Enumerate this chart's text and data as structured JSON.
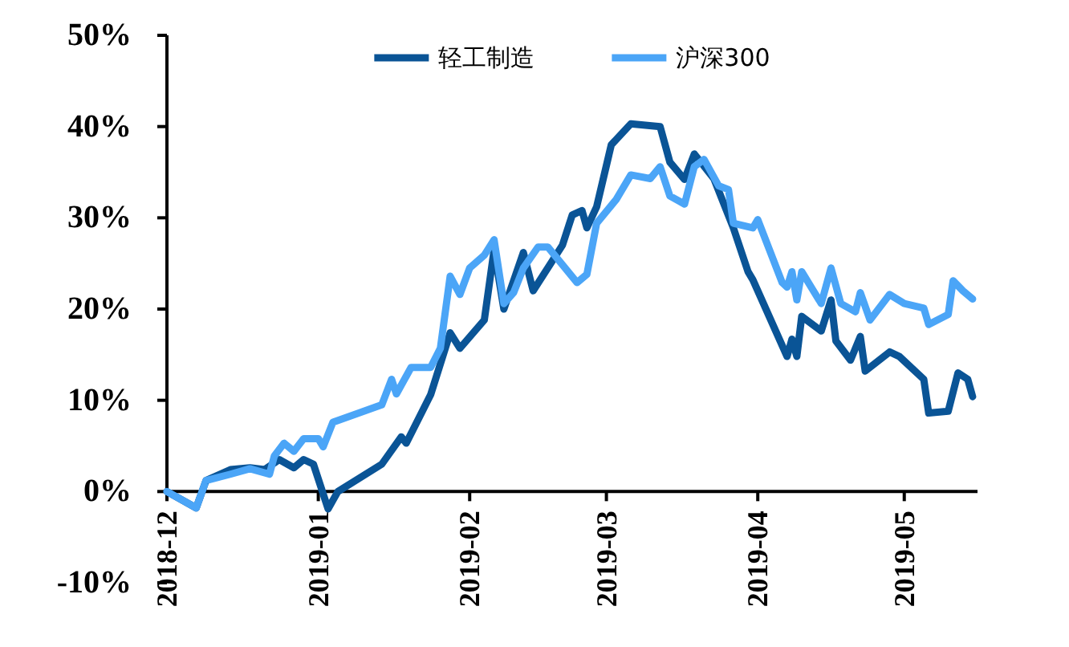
{
  "chart_data": {
    "type": "line",
    "xlim": [
      "2018-12-01",
      "2019-05-16"
    ],
    "xticks": [
      "2018-12",
      "2019-01",
      "2019-02",
      "2019-03",
      "2019-04",
      "2019-05"
    ],
    "ylim": [
      -10,
      50
    ],
    "yticks": [
      {
        "value": -10,
        "label": "-10%"
      },
      {
        "value": 0,
        "label": "0%"
      },
      {
        "value": 10,
        "label": "10%"
      },
      {
        "value": 20,
        "label": "20%"
      },
      {
        "value": 30,
        "label": "30%"
      },
      {
        "value": 40,
        "label": "40%"
      },
      {
        "value": 50,
        "label": "50%"
      }
    ],
    "legend": "top",
    "series": [
      {
        "name": "轻工制造",
        "color": "#0a5496",
        "x": [
          "2018-12-01",
          "2018-12-07",
          "2018-12-09",
          "2018-12-14",
          "2018-12-18",
          "2018-12-21",
          "2018-12-24",
          "2018-12-27",
          "2018-12-29",
          "2018-12-31",
          "2019-01-03",
          "2019-01-05",
          "2019-01-14",
          "2019-01-18",
          "2019-01-19",
          "2019-01-24",
          "2019-01-28",
          "2019-01-30",
          "2019-02-04",
          "2019-02-06",
          "2019-02-08",
          "2019-02-12",
          "2019-02-14",
          "2019-02-20",
          "2019-02-22",
          "2019-02-24",
          "2019-02-25",
          "2019-02-27",
          "2019-03-02",
          "2019-03-06",
          "2019-03-12",
          "2019-03-14",
          "2019-03-17",
          "2019-03-19",
          "2019-03-23",
          "2019-03-27",
          "2019-03-30",
          "2019-03-31",
          "2019-04-07",
          "2019-04-08",
          "2019-04-09",
          "2019-04-10",
          "2019-04-14",
          "2019-04-16",
          "2019-04-17",
          "2019-04-20",
          "2019-04-22",
          "2019-04-23",
          "2019-04-28",
          "2019-04-30",
          "2019-05-05",
          "2019-05-06",
          "2019-05-10",
          "2019-05-12",
          "2019-05-14",
          "2019-05-15"
        ],
        "values": [
          0,
          -1.8,
          1.2,
          2.4,
          2.6,
          2.4,
          3.5,
          2.6,
          3.5,
          3.0,
          -1.9,
          0,
          3,
          6,
          5.3,
          10.6,
          17.4,
          15.7,
          18.8,
          26.5,
          20,
          26.2,
          22,
          27,
          30.3,
          30.8,
          28.9,
          31.2,
          38,
          40.3,
          40,
          36.1,
          34.2,
          37,
          34.3,
          28.9,
          24.1,
          23.2,
          14.8,
          16.7,
          14.8,
          19.2,
          17.6,
          21,
          16.5,
          14.4,
          17,
          13.2,
          15.3,
          14.8,
          12.3,
          8.6,
          8.8,
          13,
          12.3,
          10.4
        ]
      },
      {
        "name": "沪深300",
        "color": "#4ba5f7",
        "x": [
          "2018-12-01",
          "2018-12-07",
          "2018-12-09",
          "2018-12-14",
          "2018-12-18",
          "2018-12-22",
          "2018-12-23",
          "2018-12-25",
          "2018-12-27",
          "2018-12-29",
          "2019-01-01",
          "2019-01-02",
          "2019-01-04",
          "2019-01-14",
          "2019-01-16",
          "2019-01-17",
          "2019-01-20",
          "2019-01-24",
          "2019-01-26",
          "2019-01-28",
          "2019-01-30",
          "2019-02-01",
          "2019-02-04",
          "2019-02-06",
          "2019-02-08",
          "2019-02-10",
          "2019-02-12",
          "2019-02-15",
          "2019-02-17",
          "2019-02-23",
          "2019-02-25",
          "2019-02-27",
          "2019-03-03",
          "2019-03-06",
          "2019-03-10",
          "2019-03-12",
          "2019-03-14",
          "2019-03-17",
          "2019-03-19",
          "2019-03-21",
          "2019-03-24",
          "2019-03-26",
          "2019-03-27",
          "2019-03-31",
          "2019-04-01",
          "2019-04-06",
          "2019-04-07",
          "2019-04-08",
          "2019-04-09",
          "2019-04-10",
          "2019-04-14",
          "2019-04-16",
          "2019-04-18",
          "2019-04-21",
          "2019-04-22",
          "2019-04-24",
          "2019-04-28",
          "2019-05-01",
          "2019-05-05",
          "2019-05-06",
          "2019-05-10",
          "2019-05-11",
          "2019-05-13",
          "2019-05-15"
        ],
        "values": [
          0,
          -1.8,
          1.2,
          1.9,
          2.5,
          1.9,
          3.9,
          5.3,
          4.4,
          5.8,
          5.8,
          4.9,
          7.6,
          9.5,
          12.3,
          10.7,
          13.6,
          13.6,
          15.7,
          23.6,
          21.6,
          24.5,
          25.9,
          27.6,
          20.6,
          21.8,
          24.5,
          26.8,
          26.8,
          22.9,
          23.8,
          29.4,
          32,
          34.7,
          34.3,
          35.6,
          32.4,
          31.5,
          35.6,
          36.4,
          33.5,
          33.1,
          29.4,
          28.9,
          29.8,
          22.9,
          22.4,
          24.1,
          21,
          24.1,
          20.6,
          24.5,
          20.6,
          19.7,
          21.8,
          18.8,
          21.6,
          20.6,
          20.1,
          18.3,
          19.4,
          23.1,
          22,
          21.1
        ]
      }
    ]
  }
}
